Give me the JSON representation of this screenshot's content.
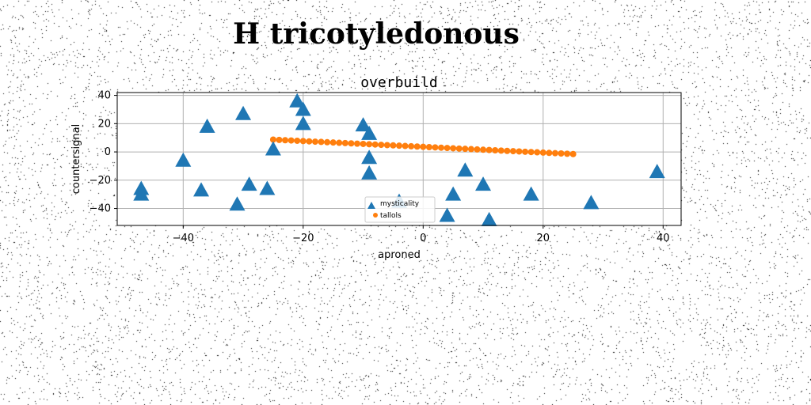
{
  "page": {
    "title": "H tricotyledonous"
  },
  "chart_data": {
    "type": "scatter",
    "title": "overbuild",
    "xlabel": "aproned",
    "ylabel": "countersignal",
    "xlim": [
      -51,
      43
    ],
    "ylim": [
      -52,
      42
    ],
    "xticks": [
      -40,
      -20,
      0,
      20,
      40
    ],
    "yticks": [
      -40,
      -20,
      0,
      20,
      40
    ],
    "grid": true,
    "legend_position": "lower center",
    "series": [
      {
        "name": "mysticality",
        "marker": "triangle",
        "color": "#1f77b4",
        "points": [
          [
            -47,
            -26
          ],
          [
            -47,
            -30
          ],
          [
            -40,
            -6
          ],
          [
            -37,
            -27
          ],
          [
            -36,
            18
          ],
          [
            -31,
            -37
          ],
          [
            -30,
            27
          ],
          [
            -29,
            -23
          ],
          [
            -26,
            -26
          ],
          [
            -25,
            2
          ],
          [
            -21,
            36
          ],
          [
            -20,
            30
          ],
          [
            -20,
            20
          ],
          [
            -10,
            19
          ],
          [
            -9,
            13
          ],
          [
            -9,
            -4
          ],
          [
            -9,
            -15
          ],
          [
            -4,
            -35
          ],
          [
            4,
            -45
          ],
          [
            5,
            -30
          ],
          [
            7,
            -13
          ],
          [
            10,
            -23
          ],
          [
            11,
            -48
          ],
          [
            18,
            -30
          ],
          [
            28,
            -36
          ],
          [
            39,
            -14
          ]
        ]
      },
      {
        "name": "tallols",
        "marker": "circle",
        "color": "#ff7f0e",
        "x_range": [
          -25,
          25
        ],
        "y_range": [
          8.7,
          -1.5
        ],
        "count": 51
      }
    ]
  }
}
